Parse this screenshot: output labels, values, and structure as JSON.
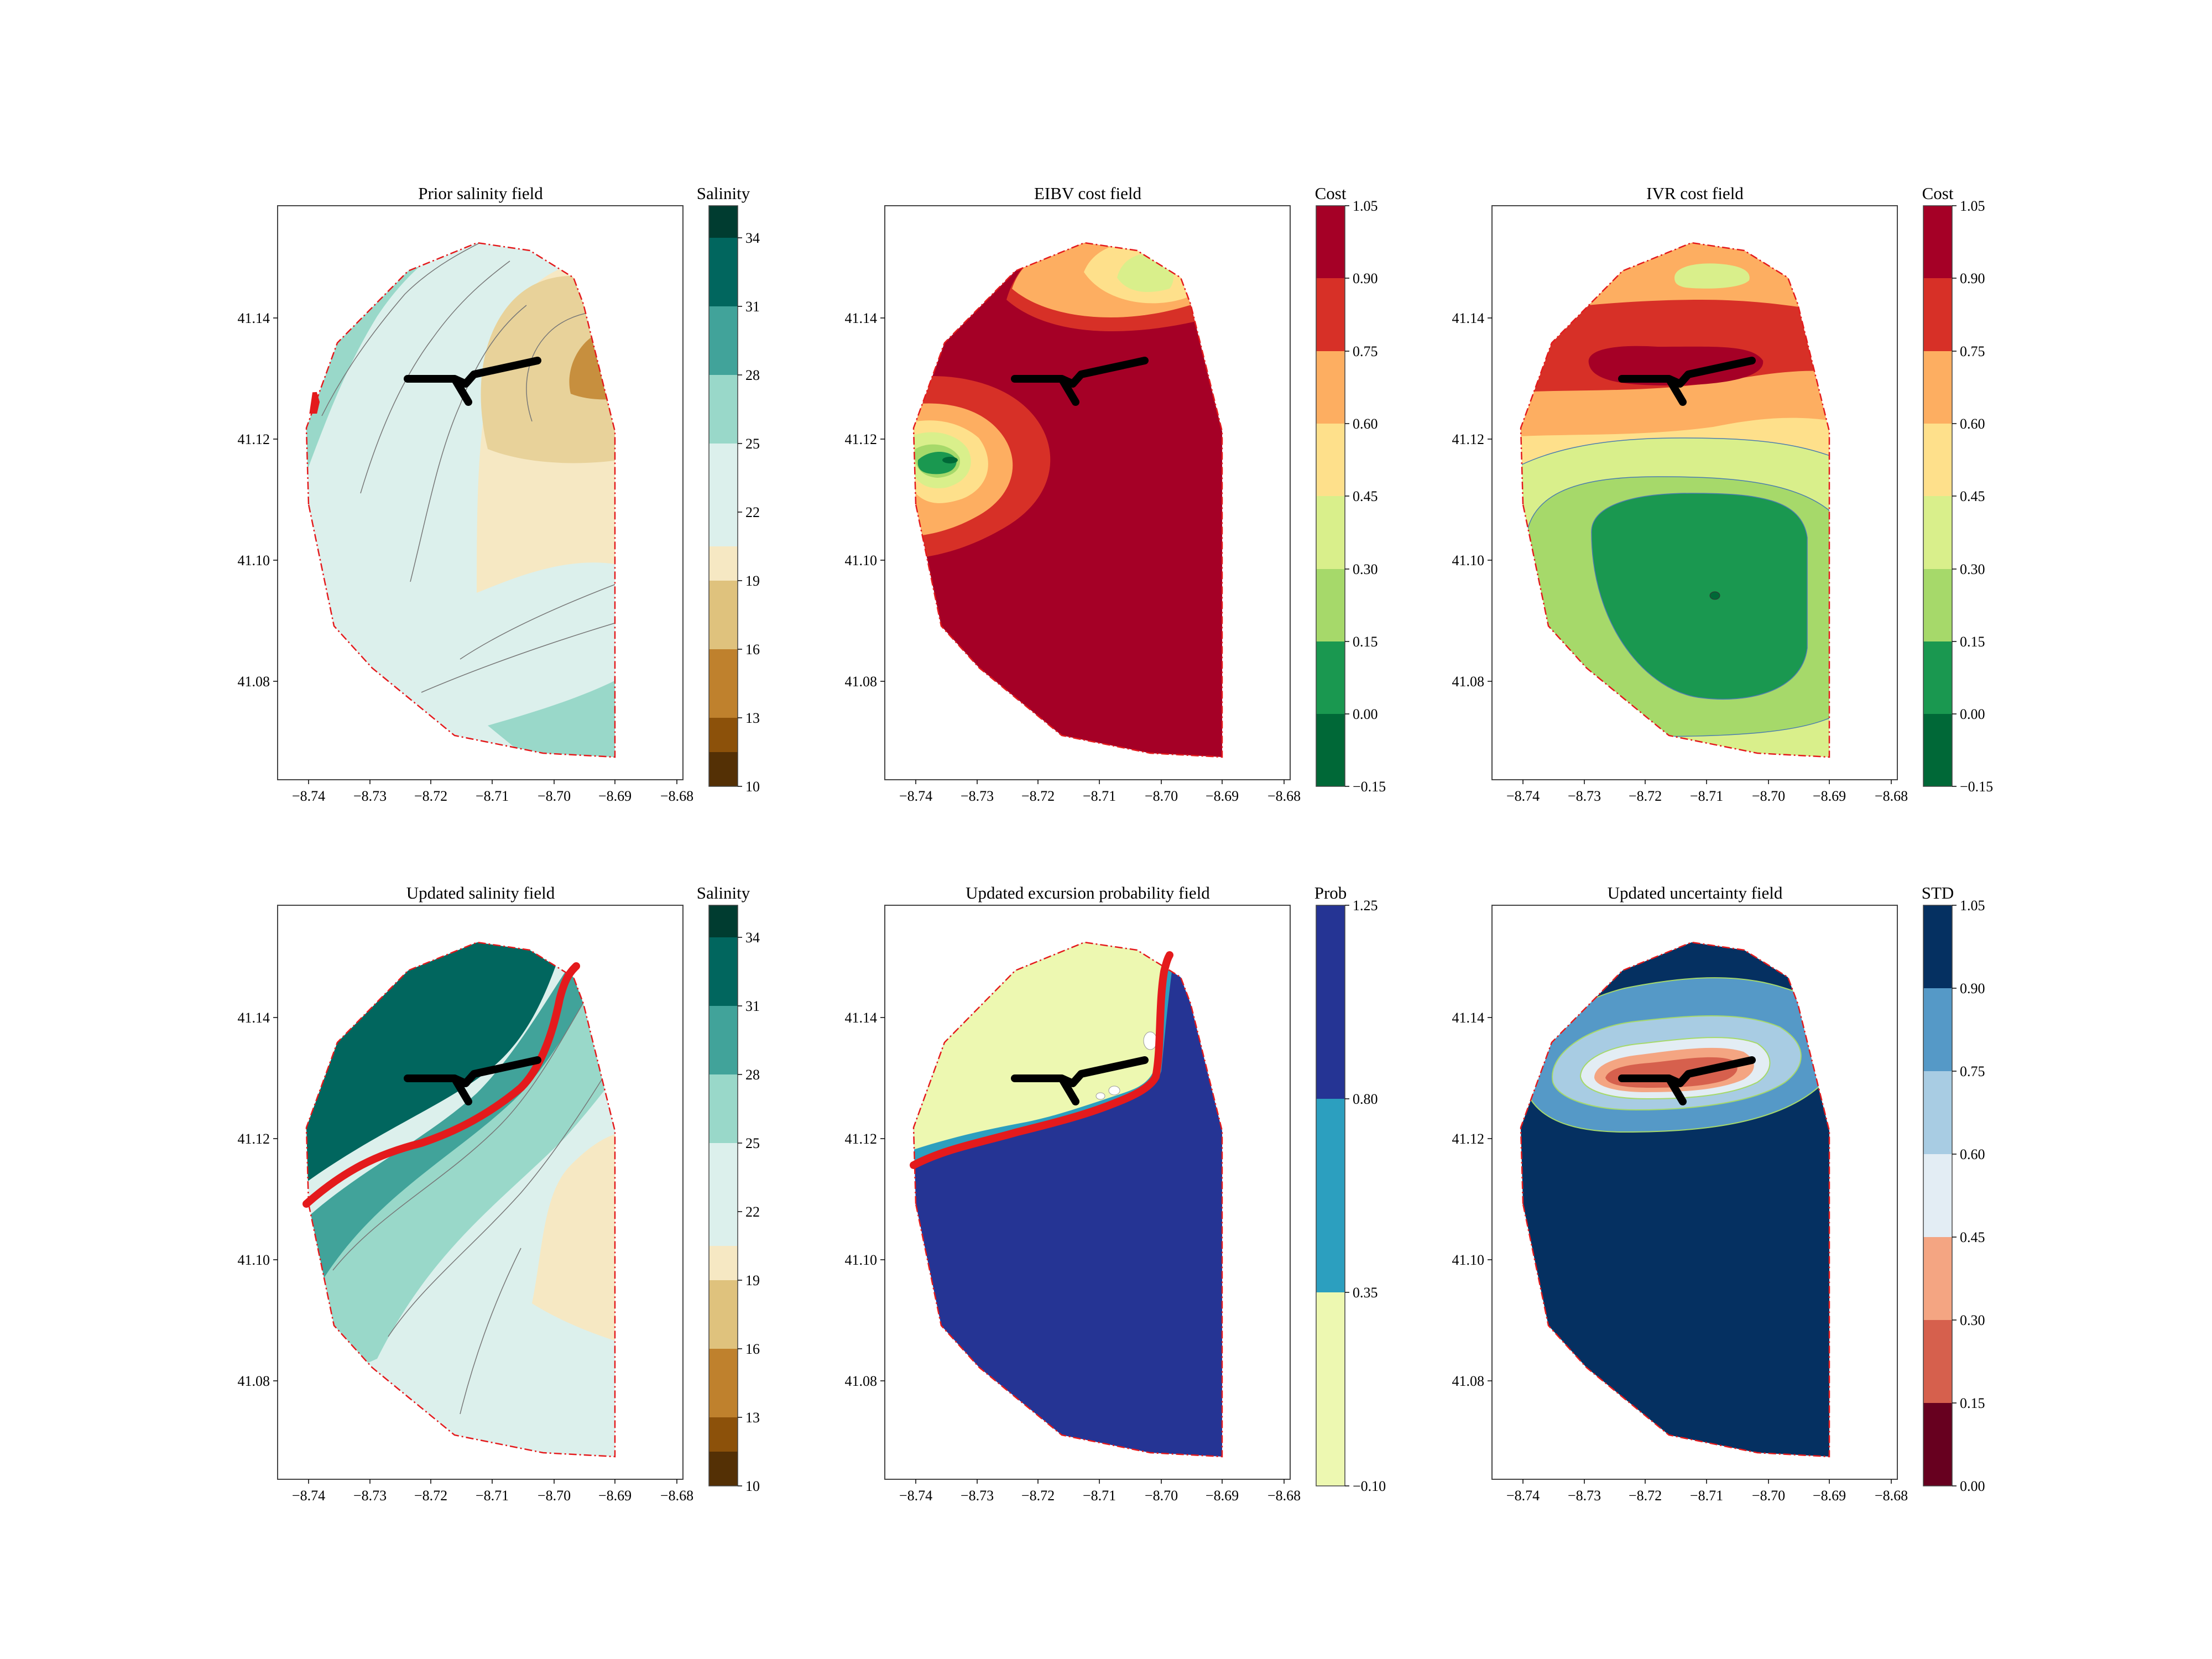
{
  "chart_data": [
    {
      "type": "contour",
      "title": "Prior salinity field",
      "xlim": [
        -8.745,
        -8.68
      ],
      "ylim": [
        41.065,
        41.158
      ],
      "xticks": [
        -8.74,
        -8.73,
        -8.72,
        -8.71,
        -8.7,
        -8.69,
        -8.68
      ],
      "yticks": [
        41.08,
        41.1,
        41.12,
        41.14
      ],
      "colorbar": {
        "label": "Salinity",
        "levels": [
          10,
          13,
          16,
          19,
          22,
          25,
          28,
          31,
          34,
          36
        ],
        "ticks": [
          "10",
          "13",
          "16",
          "19",
          "22",
          "25",
          "28",
          "31",
          "34"
        ],
        "colors": [
          "#543005",
          "#8c510a",
          "#bf812d",
          "#dfc27d",
          "#f6e8c3",
          "#dcf0ec",
          "#99d8c9",
          "#41a39a",
          "#01665e",
          "#003c30"
        ]
      },
      "field_description": "saltier water (25-31) along western boundary, fresher core (~16-19) in north-east",
      "boundary_style": "red dash-dot polygon",
      "path": "black line",
      "highlight": "small red cluster on western edge"
    },
    {
      "type": "contour",
      "title": "EIBV cost field",
      "xlim": [
        -8.745,
        -8.68
      ],
      "ylim": [
        41.065,
        41.158
      ],
      "xticks": [
        -8.74,
        -8.73,
        -8.72,
        -8.71,
        -8.7,
        -8.69,
        -8.68
      ],
      "yticks": [
        41.08,
        41.1,
        41.12,
        41.14
      ],
      "colorbar": {
        "label": "Cost",
        "levels": [
          -0.15,
          0.0,
          0.15,
          0.3,
          0.45,
          0.6,
          0.75,
          0.9,
          1.05
        ],
        "ticks": [
          "−0.15",
          "0.00",
          "0.15",
          "0.30",
          "0.45",
          "0.60",
          "0.75",
          "0.90",
          "1.05"
        ],
        "colors": [
          "#006837",
          "#1a9850",
          "#a6d96a",
          "#d9ef8b",
          "#fee08b",
          "#fdae61",
          "#d73027",
          "#a50026"
        ]
      },
      "field_description": "mostly high cost; low-cost minima in west (~-8.735, 41.115) and north (~-8.70, 41.145)",
      "boundary_style": "red dash-dot polygon",
      "path": "black line"
    },
    {
      "type": "contour",
      "title": "IVR cost field",
      "xlim": [
        -8.745,
        -8.68
      ],
      "ylim": [
        41.065,
        41.158
      ],
      "xticks": [
        -8.74,
        -8.73,
        -8.72,
        -8.71,
        -8.7,
        -8.69,
        -8.68
      ],
      "yticks": [
        41.08,
        41.1,
        41.12,
        41.14
      ],
      "colorbar": {
        "label": "Cost",
        "levels": [
          -0.15,
          0.0,
          0.15,
          0.3,
          0.45,
          0.6,
          0.75,
          0.9,
          1.05
        ],
        "ticks": [
          "−0.15",
          "0.00",
          "0.15",
          "0.30",
          "0.45",
          "0.60",
          "0.75",
          "0.90",
          "1.05"
        ],
        "colors": [
          "#006837",
          "#1a9850",
          "#a6d96a",
          "#d9ef8b",
          "#fee08b",
          "#fdae61",
          "#d73027",
          "#a50026"
        ]
      },
      "field_description": "high cost around path, low-cost basin centred near (-8.707, 41.094)",
      "boundary_style": "red dash-dot polygon",
      "path": "black line"
    },
    {
      "type": "contour",
      "title": "Updated salinity field",
      "xlim": [
        -8.745,
        -8.68
      ],
      "ylim": [
        41.065,
        41.158
      ],
      "xticks": [
        -8.74,
        -8.73,
        -8.72,
        -8.71,
        -8.7,
        -8.69,
        -8.68
      ],
      "yticks": [
        41.08,
        41.1,
        41.12,
        41.14
      ],
      "colorbar": {
        "label": "Salinity",
        "levels": [
          10,
          13,
          16,
          19,
          22,
          25,
          28,
          31,
          34,
          36
        ],
        "ticks": [
          "10",
          "13",
          "16",
          "19",
          "22",
          "25",
          "28",
          "31",
          "34"
        ],
        "colors": [
          "#543005",
          "#8c510a",
          "#bf812d",
          "#dfc27d",
          "#f6e8c3",
          "#dcf0ec",
          "#99d8c9",
          "#41a39a",
          "#01665e",
          "#003c30"
        ]
      },
      "field_description": "saline water (31-34) in north-west above red front; fresher (19-25) in south-east",
      "boundary_style": "red dash-dot polygon",
      "path": "black line",
      "highlight": "red boundary curve"
    },
    {
      "type": "contour",
      "title": "Updated excursion probability field",
      "xlim": [
        -8.745,
        -8.68
      ],
      "ylim": [
        41.065,
        41.158
      ],
      "xticks": [
        -8.74,
        -8.73,
        -8.72,
        -8.71,
        -8.7,
        -8.69,
        -8.68
      ],
      "yticks": [
        41.08,
        41.1,
        41.12,
        41.14
      ],
      "colorbar": {
        "label": "Prob",
        "levels": [
          -0.1,
          0.35,
          0.8,
          1.25
        ],
        "ticks": [
          "−0.10",
          "0.35",
          "0.80",
          "1.25"
        ],
        "colors": [
          "#edf8b1",
          "#2c9fbf",
          "#253494"
        ]
      },
      "field_description": "probability ~0 in north-west, ~1 in south-east; separated by red front",
      "boundary_style": "red dash-dot polygon",
      "path": "black line",
      "highlight": "red boundary curve"
    },
    {
      "type": "contour",
      "title": "Updated uncertainty field",
      "xlim": [
        -8.745,
        -8.68
      ],
      "ylim": [
        41.065,
        41.158
      ],
      "xticks": [
        -8.74,
        -8.73,
        -8.72,
        -8.71,
        -8.7,
        -8.69,
        -8.68
      ],
      "yticks": [
        41.08,
        41.1,
        41.12,
        41.14
      ],
      "colorbar": {
        "label": "STD",
        "levels": [
          0.0,
          0.15,
          0.3,
          0.45,
          0.6,
          0.75,
          0.9,
          1.05
        ],
        "ticks": [
          "0.00",
          "0.15",
          "0.30",
          "0.45",
          "0.60",
          "0.75",
          "0.90",
          "1.05"
        ],
        "colors": [
          "#67001f",
          "#d6604d",
          "#f4a582",
          "#e3edf4",
          "#a8cce3",
          "#5599c7",
          "#053061"
        ]
      },
      "field_description": "low uncertainty (0.15-0.30) along the path, high (>0.90) elsewhere",
      "boundary_style": "red dash-dot polygon",
      "path": "black line"
    }
  ]
}
